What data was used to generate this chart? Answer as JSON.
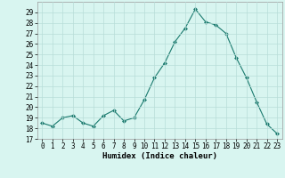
{
  "x": [
    0,
    1,
    2,
    3,
    4,
    5,
    6,
    7,
    8,
    9,
    10,
    11,
    12,
    13,
    14,
    15,
    16,
    17,
    18,
    19,
    20,
    21,
    22,
    23
  ],
  "y": [
    18.5,
    18.2,
    19.0,
    19.2,
    18.5,
    18.2,
    19.2,
    19.7,
    18.7,
    19.0,
    20.7,
    22.8,
    24.2,
    26.2,
    27.5,
    29.3,
    28.1,
    27.8,
    27.0,
    24.7,
    22.8,
    20.5,
    18.4,
    17.5
  ],
  "xlabel": "Humidex (Indice chaleur)",
  "ylim": [
    17,
    30
  ],
  "xlim": [
    -0.5,
    23.5
  ],
  "yticks": [
    17,
    18,
    19,
    20,
    21,
    22,
    23,
    24,
    25,
    26,
    27,
    28,
    29
  ],
  "xticks": [
    0,
    1,
    2,
    3,
    4,
    5,
    6,
    7,
    8,
    9,
    10,
    11,
    12,
    13,
    14,
    15,
    16,
    17,
    18,
    19,
    20,
    21,
    22,
    23
  ],
  "line_color": "#1a7a6e",
  "marker_color": "#1a7a6e",
  "bg_color": "#d8f5f0",
  "grid_color": "#b8ddd8",
  "label_fontsize": 6.5,
  "tick_fontsize": 5.5
}
